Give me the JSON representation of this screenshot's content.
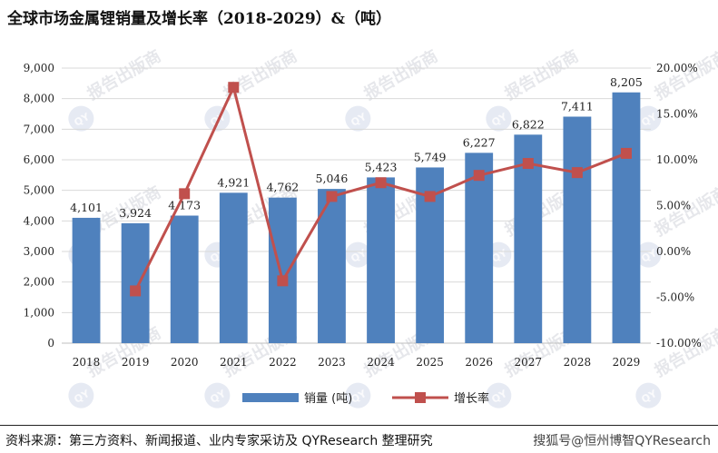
{
  "title": "全球市场金属锂销量及增长率（2018-2029）&（吨）",
  "footer": {
    "source": "资料来源：第三方资料、新闻报道、业内专家采访及 QYResearch 整理研究",
    "credit": "搜狐号@恒州博智QYResearch"
  },
  "watermark": {
    "text": "报告出版商",
    "logo_text": "QY"
  },
  "colors": {
    "bar": "#4f81bd",
    "line": "#c0504d",
    "grid": "#d9d9d9"
  },
  "chart_data": {
    "type": "bar",
    "title": "全球市场金属锂销量及增长率（2018-2029）&（吨）",
    "categories": [
      "2018",
      "2019",
      "2020",
      "2021",
      "2022",
      "2023",
      "2024",
      "2025",
      "2026",
      "2027",
      "2028",
      "2029"
    ],
    "series": [
      {
        "name": "销量 (吨)",
        "type": "bar",
        "axis": "left",
        "values": [
          4101,
          3924,
          4173,
          4921,
          4762,
          5046,
          5423,
          5749,
          6227,
          6822,
          7411,
          8205
        ],
        "labels": [
          "4,101",
          "3,924",
          "4,173",
          "4,921",
          "4,762",
          "5,046",
          "5,423",
          "5,749",
          "6,227",
          "6,822",
          "7,411",
          "8,205"
        ]
      },
      {
        "name": "增长率",
        "type": "line",
        "axis": "right",
        "values": [
          null,
          -4.3,
          6.3,
          17.9,
          -3.2,
          6.0,
          7.5,
          6.0,
          8.3,
          9.6,
          8.6,
          10.7
        ]
      }
    ],
    "y_left": {
      "min": 0,
      "max": 9000,
      "step": 1000,
      "tick_labels": [
        "0",
        "1,000",
        "2,000",
        "3,000",
        "4,000",
        "5,000",
        "6,000",
        "7,000",
        "8,000",
        "9,000"
      ]
    },
    "y_right": {
      "min": -10,
      "max": 20,
      "step": 5,
      "tick_labels": [
        "-10.00%",
        "-5.00%",
        "0.00%",
        "5.00%",
        "10.00%",
        "15.00%",
        "20.00%"
      ]
    },
    "grid": true,
    "legend_position": "bottom"
  }
}
